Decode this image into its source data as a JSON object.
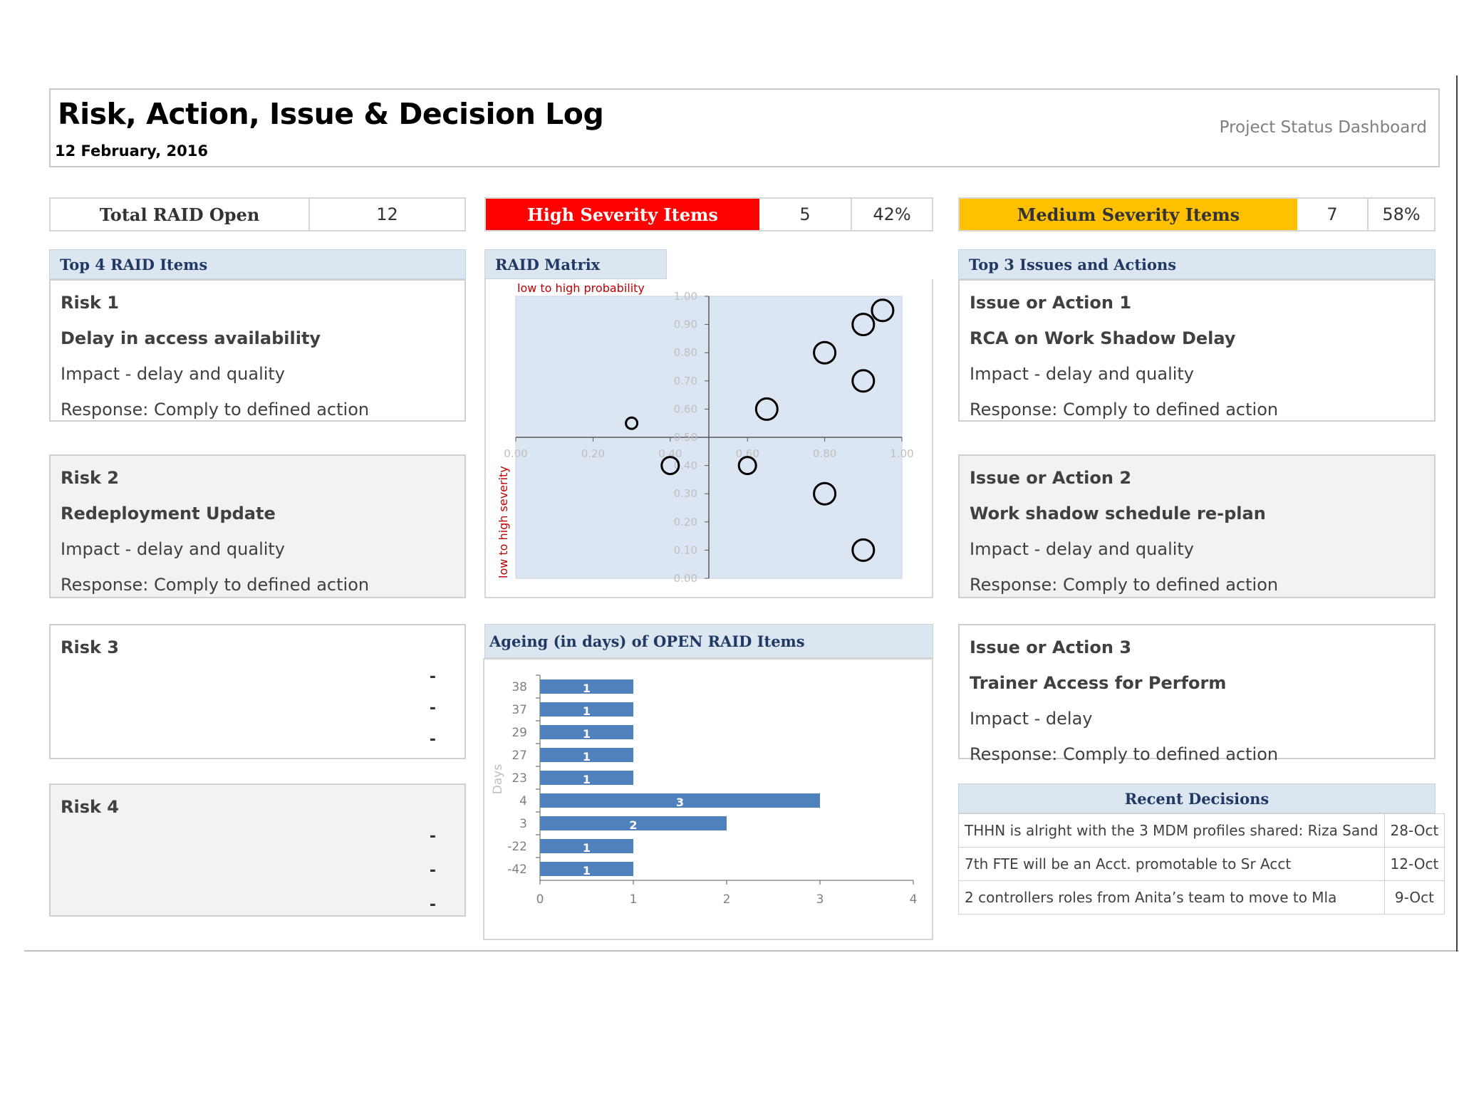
{
  "header": {
    "title": "Risk, Action, Issue & Decision Log",
    "date": "12 February, 2016",
    "subtitle": "Project Status Dashboard"
  },
  "kpis": {
    "total": {
      "label": "Total RAID Open",
      "value": "12"
    },
    "high": {
      "label": "High Severity Items",
      "value": "5",
      "percent": "42%",
      "color": "#ff0000"
    },
    "medium": {
      "label": "Medium Severity Items",
      "value": "7",
      "percent": "58%",
      "color": "#ffc000"
    }
  },
  "top_raid": {
    "heading": "Top 4 RAID Items",
    "risks": [
      {
        "title": "Risk 1",
        "name": "Delay in access availability",
        "impact": "Impact - delay and quality",
        "response": "Response: Comply to defined action"
      },
      {
        "title": "Risk 2",
        "name": "Redeployment Update",
        "impact": "Impact - delay and quality",
        "response": "Response: Comply to defined action"
      },
      {
        "title": "Risk 3",
        "dashes": [
          "-",
          "-",
          "-"
        ]
      },
      {
        "title": "Risk 4",
        "dashes": [
          "-",
          "-",
          "-"
        ]
      }
    ]
  },
  "top_issues": {
    "heading": "Top 3 Issues and Actions",
    "items": [
      {
        "title": "Issue or Action 1",
        "name": "RCA on Work Shadow Delay",
        "impact": "Impact - delay and quality",
        "response": "Response: Comply to defined action"
      },
      {
        "title": "Issue or Action 2",
        "name": "Work shadow schedule re-plan",
        "impact": "Impact - delay and quality",
        "response": "Response: Comply to defined action"
      },
      {
        "title": "Issue or Action 3",
        "name": "Trainer Access for Perform",
        "impact": "Impact - delay",
        "response": "Response: Comply to defined action"
      }
    ]
  },
  "decisions": {
    "heading": "Recent Decisions",
    "rows": [
      {
        "text": "THHN is alright with the 3 MDM profiles shared: Riza Sand",
        "date": "28-Oct"
      },
      {
        "text": "7th FTE will be an Acct. promotable to Sr Acct",
        "date": "12-Oct"
      },
      {
        "text": "2 controllers roles from Anita’s team to move to Mla",
        "date": "9-Oct"
      }
    ]
  },
  "chart_data": [
    {
      "type": "scatter",
      "title": "RAID Matrix",
      "xlabel": "low to high probability",
      "ylabel": "low to high severity",
      "xlim": [
        0,
        1
      ],
      "ylim": [
        0,
        1
      ],
      "x_ticks": [
        "0.00",
        "0.20",
        "0.40",
        "0.60",
        "0.80",
        "1.00"
      ],
      "y_ticks": [
        "0.00",
        "0.10",
        "0.20",
        "0.30",
        "0.40",
        "0.50",
        "0.60",
        "0.70",
        "0.80",
        "0.90",
        "1.00"
      ],
      "axis_cross": {
        "x": 0.5,
        "y": 0.5
      },
      "points": [
        {
          "x": 0.95,
          "y": 0.95,
          "size": "large"
        },
        {
          "x": 0.9,
          "y": 0.9,
          "size": "large"
        },
        {
          "x": 0.8,
          "y": 0.8,
          "size": "large"
        },
        {
          "x": 0.9,
          "y": 0.7,
          "size": "large"
        },
        {
          "x": 0.65,
          "y": 0.6,
          "size": "large"
        },
        {
          "x": 0.3,
          "y": 0.55,
          "size": "small"
        },
        {
          "x": 0.4,
          "y": 0.4,
          "size": "medium"
        },
        {
          "x": 0.6,
          "y": 0.4,
          "size": "medium"
        },
        {
          "x": 0.8,
          "y": 0.3,
          "size": "large"
        },
        {
          "x": 0.9,
          "y": 0.1,
          "size": "large"
        }
      ],
      "grid": false
    },
    {
      "type": "bar",
      "orientation": "horizontal",
      "title": "Ageing (in days) of OPEN RAID Items",
      "ylabel": "Days",
      "categories": [
        "38",
        "37",
        "29",
        "27",
        "23",
        "4",
        "3",
        "-22",
        "-42"
      ],
      "values": [
        1,
        1,
        1,
        1,
        1,
        3,
        2,
        1,
        1
      ],
      "x_ticks": [
        "0",
        "1",
        "2",
        "3",
        "4"
      ],
      "xlim": [
        0,
        4
      ],
      "color": "#4f81bd",
      "grid": false
    }
  ]
}
